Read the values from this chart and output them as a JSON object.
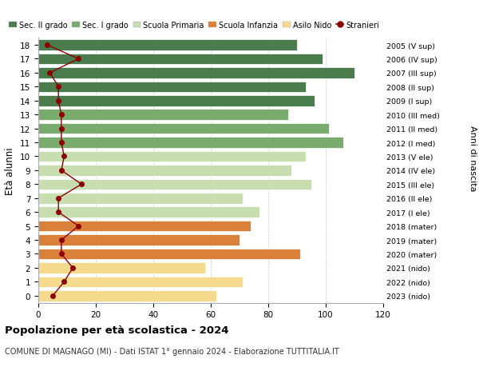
{
  "ages": [
    18,
    17,
    16,
    15,
    14,
    13,
    12,
    11,
    10,
    9,
    8,
    7,
    6,
    5,
    4,
    3,
    2,
    1,
    0
  ],
  "right_labels": [
    "2005 (V sup)",
    "2006 (IV sup)",
    "2007 (III sup)",
    "2008 (II sup)",
    "2009 (I sup)",
    "2010 (III med)",
    "2011 (II med)",
    "2012 (I med)",
    "2013 (V ele)",
    "2014 (IV ele)",
    "2015 (III ele)",
    "2016 (II ele)",
    "2017 (I ele)",
    "2018 (mater)",
    "2019 (mater)",
    "2020 (mater)",
    "2021 (nido)",
    "2022 (nido)",
    "2023 (nido)"
  ],
  "bar_values": [
    90,
    99,
    110,
    93,
    96,
    87,
    101,
    106,
    93,
    88,
    95,
    71,
    77,
    74,
    70,
    91,
    58,
    71,
    62
  ],
  "bar_colors": [
    "#4a7c4e",
    "#4a7c4e",
    "#4a7c4e",
    "#4a7c4e",
    "#4a7c4e",
    "#7aab6e",
    "#7aab6e",
    "#7aab6e",
    "#c8ddb0",
    "#c8ddb0",
    "#c8ddb0",
    "#c8ddb0",
    "#c8ddb0",
    "#d9813a",
    "#d9813a",
    "#d9813a",
    "#f5d98c",
    "#f5d98c",
    "#f5d98c"
  ],
  "stranieri_values": [
    3,
    14,
    4,
    7,
    7,
    8,
    8,
    8,
    9,
    8,
    15,
    7,
    7,
    14,
    8,
    8,
    12,
    9,
    5
  ],
  "legend_labels": [
    "Sec. II grado",
    "Sec. I grado",
    "Scuola Primaria",
    "Scuola Infanzia",
    "Asilo Nido",
    "Stranieri"
  ],
  "legend_colors": [
    "#4a7c4e",
    "#7aab6e",
    "#c8ddb0",
    "#d9813a",
    "#f5d98c",
    "#8b0000"
  ],
  "title": "Popolazione per età scolastica - 2024",
  "subtitle": "COMUNE DI MAGNAGO (MI) - Dati ISTAT 1° gennaio 2024 - Elaborazione TUTTITALIA.IT",
  "ylabel_left": "Età alunni",
  "ylabel_right": "Anni di nascita",
  "xlim": [
    0,
    120
  ],
  "xticks": [
    0,
    20,
    40,
    60,
    80,
    100,
    120
  ],
  "background_color": "#ffffff",
  "grid_color": "#cccccc",
  "bar_height": 0.78,
  "stranieri_line_color": "#8b0000",
  "stranieri_marker_color": "#8b0000"
}
